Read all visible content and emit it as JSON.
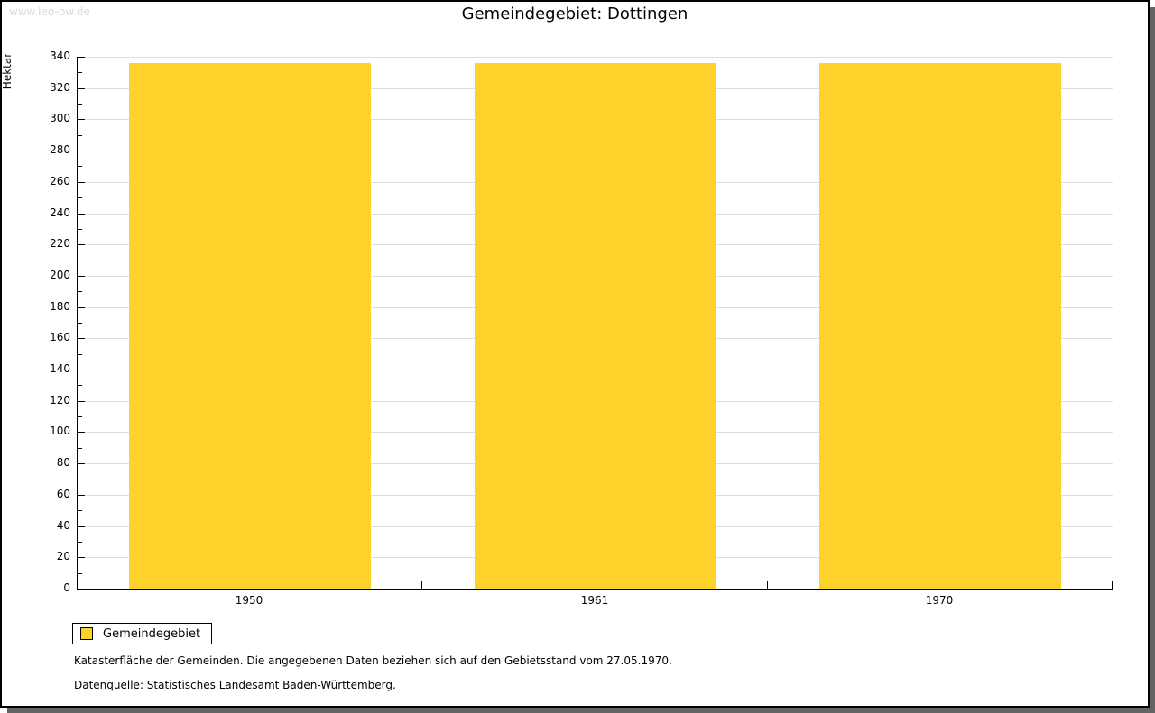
{
  "watermark": "www.leo-bw.de",
  "title": "Gemeindegebiet: Dottingen",
  "chart_data": {
    "type": "bar",
    "title": "Gemeindegebiet: Dottingen",
    "categories": [
      "1950",
      "1961",
      "1970"
    ],
    "series": [
      {
        "name": "Gemeindegebiet",
        "values": [
          336,
          336,
          336
        ]
      }
    ],
    "xlabel": "",
    "ylabel": "Hektar",
    "ylim": [
      0,
      340
    ],
    "ytick_major_step": 20,
    "ytick_minor_step": 10,
    "grid": true,
    "bar_color": "#FDD32B",
    "gridline_color": "#dddddd",
    "legend_position": "bottom-left"
  },
  "legend": {
    "items": [
      {
        "label": "Gemeindegebiet",
        "color": "#FDD32B"
      }
    ]
  },
  "footnotes": [
    "Katasterfläche der Gemeinden. Die angegebenen Daten beziehen sich auf den Gebietsstand vom 27.05.1970.",
    "Datenquelle: Statistisches Landesamt Baden-Württemberg."
  ],
  "colors": {
    "bar": "#FDD32B",
    "gridline": "#dddddd",
    "axis": "#000000",
    "watermark": "#d9d9d9",
    "shadow": "#646464"
  }
}
